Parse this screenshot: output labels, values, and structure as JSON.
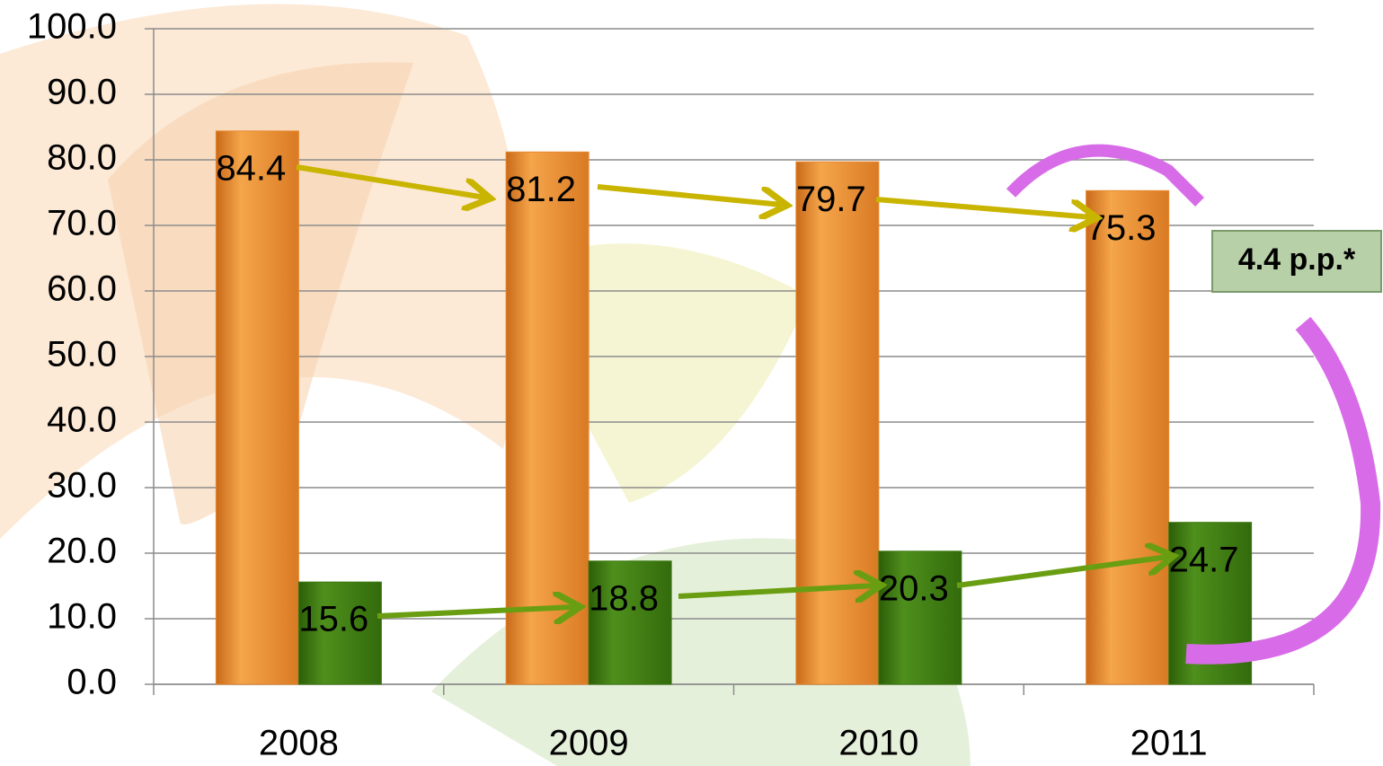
{
  "chart_data": {
    "type": "bar",
    "categories": [
      "2008",
      "2009",
      "2010",
      "2011"
    ],
    "series": [
      {
        "color": "#e8882c",
        "values": [
          84.4,
          81.2,
          79.7,
          75.3
        ]
      },
      {
        "color": "#3d7a10",
        "values": [
          15.6,
          18.8,
          20.3,
          24.7
        ]
      }
    ],
    "ylim": [
      0,
      100
    ],
    "yticks": [
      {
        "value": 0,
        "label": "0.0"
      },
      {
        "value": 10,
        "label": "10.0"
      },
      {
        "value": 20,
        "label": "20.0"
      },
      {
        "value": 30,
        "label": "30.0"
      },
      {
        "value": 40,
        "label": "40.0"
      },
      {
        "value": 50,
        "label": "50.0"
      },
      {
        "value": 60,
        "label": "60.0"
      },
      {
        "value": 70,
        "label": "70.0"
      },
      {
        "value": 80,
        "label": "80.0"
      },
      {
        "value": 90,
        "label": "90.0"
      },
      {
        "value": 100,
        "label": "100.0"
      }
    ],
    "grid": true,
    "annotation": "4.4 p.p.*"
  }
}
